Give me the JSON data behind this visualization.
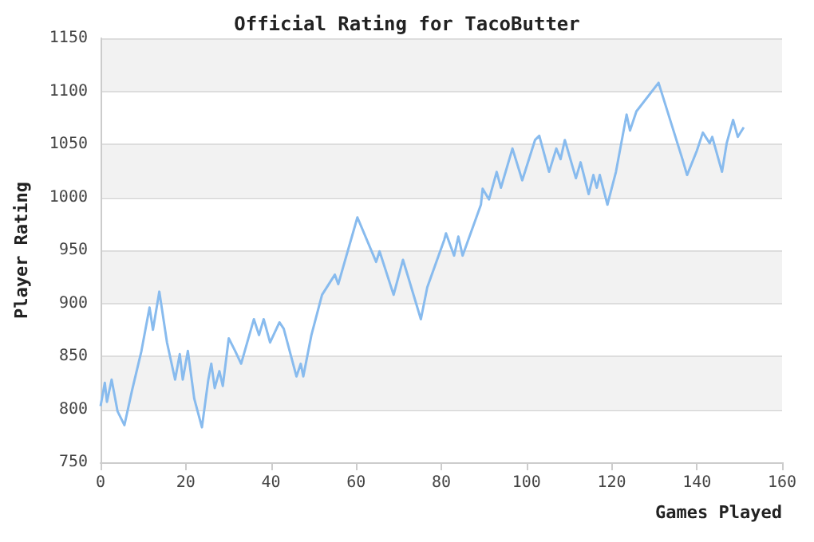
{
  "chart_data": {
    "type": "line",
    "title": "Official Rating for TacoButter",
    "xlabel": "Games Played",
    "ylabel": "Player Rating",
    "x": [
      0,
      1,
      1.5,
      2.6,
      4,
      5.6,
      7.4,
      9.6,
      11.5,
      12.3,
      13.8,
      15.6,
      17.5,
      18.6,
      19.3,
      20.5,
      22,
      23.8,
      25.3,
      26,
      26.8,
      27.9,
      28.7,
      30.1,
      31.6,
      33,
      36,
      37.2,
      38.3,
      39.8,
      42,
      43,
      46,
      47,
      47.6,
      49.5,
      52,
      55,
      55.8,
      60.3,
      64.7,
      65.5,
      68.8,
      71,
      75.2,
      76.7,
      80.7,
      81.1,
      83,
      84,
      85,
      89.3,
      89.7,
      91.2,
      93,
      94,
      96.7,
      99,
      102,
      103,
      105.3,
      107,
      108,
      109,
      111.6,
      112.7,
      114.6,
      115.7,
      116.5,
      117.2,
      119,
      121,
      123.5,
      124.3,
      125.8,
      131,
      136.6,
      137.7,
      140,
      141.4,
      143,
      143.6,
      145.9,
      147,
      148.5,
      149.6,
      151
    ],
    "series": [
      {
        "color": "#88bbee",
        "values": [
          803,
          825,
          807,
          828,
          798,
          785,
          818,
          855,
          896,
          875,
          911,
          863,
          828,
          852,
          828,
          855,
          810,
          783,
          828,
          843,
          820,
          836,
          822,
          867,
          855,
          843,
          885,
          870,
          885,
          863,
          882,
          876,
          831,
          843,
          831,
          870,
          908,
          927,
          918,
          981,
          939,
          949,
          908,
          941,
          885,
          915,
          960,
          966,
          945,
          963,
          945,
          993,
          1008,
          998,
          1024,
          1009,
          1046,
          1016,
          1054,
          1058,
          1024,
          1046,
          1036,
          1054,
          1018,
          1033,
          1003,
          1021,
          1009,
          1021,
          993,
          1024,
          1078,
          1063,
          1081,
          1108,
          1036,
          1021,
          1044,
          1061,
          1051,
          1057,
          1024,
          1051,
          1073,
          1057,
          1066
        ]
      }
    ],
    "xlim": [
      0,
      160
    ],
    "xticks": [
      0,
      20,
      40,
      60,
      80,
      100,
      120,
      140,
      160
    ],
    "ylim": [
      750,
      1150
    ],
    "yticks": [
      750,
      800,
      850,
      900,
      950,
      1000,
      1050,
      1100,
      1150
    ],
    "grid": "y",
    "line_style": "solid"
  }
}
